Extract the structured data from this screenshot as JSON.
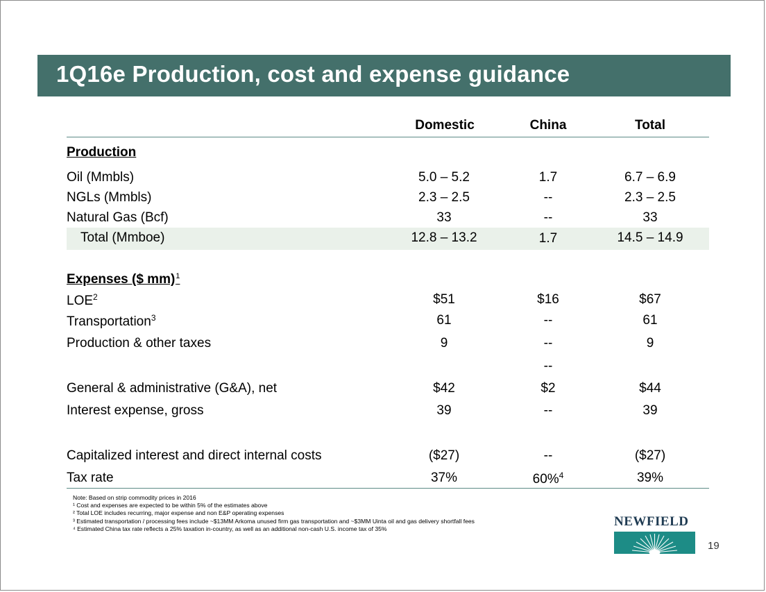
{
  "title": "1Q16e Production, cost and expense guidance",
  "columns": [
    "Domestic",
    "China",
    "Total"
  ],
  "production": {
    "heading": "Production",
    "rows": [
      {
        "label": "Oil (Mmbls)",
        "domestic": "5.0 – 5.2",
        "china": "1.7",
        "total": "6.7 – 6.9"
      },
      {
        "label": "NGLs (Mmbls)",
        "domestic": "2.3 – 2.5",
        "china": "--",
        "total": "2.3 – 2.5"
      },
      {
        "label": "Natural Gas (Bcf)",
        "domestic": "33",
        "china": "--",
        "total": "33"
      },
      {
        "label": "Total (Mmboe)",
        "domestic": "12.8 – 13.2",
        "china": "1.7",
        "total": "14.5 – 14.9"
      }
    ]
  },
  "expenses": {
    "heading": "Expenses ($ mm)",
    "heading_sup": "1",
    "rows": [
      {
        "label": "LOE",
        "sup": "2",
        "domestic": "$51",
        "china": "$16",
        "total": "$67"
      },
      {
        "label": "Transportation",
        "sup": "3",
        "domestic": "61",
        "china": "--",
        "total": "61"
      },
      {
        "label": "Production & other taxes",
        "domestic": "9",
        "china": "--",
        "total": "9"
      },
      {
        "label": "General & administrative (G&A), net",
        "domestic": "$42",
        "china": "$2",
        "total": "$44"
      },
      {
        "label": "Interest expense, gross",
        "domestic": "39",
        "china": "--",
        "total": "39"
      },
      {
        "label": "Capitalized interest and direct internal costs",
        "domestic": "($27)",
        "china": "--",
        "total": "($27)"
      },
      {
        "label": "Tax rate",
        "domestic": "37%",
        "china": "60%",
        "china_sup": "4",
        "total": "39%"
      }
    ],
    "stray_dash": "--"
  },
  "notes": [
    "Note: Based on strip commodity prices in 2016",
    "¹ Cost and expenses are expected to be within 5% of the estimates above",
    "² Total LOE includes recurring, major expense and non E&P operating expenses",
    "³ Estimated transportation / processing fees include ~$13MM Arkoma unused firm gas transportation and ~$3MM Uinta oil and gas delivery shortfall fees",
    "⁴ Estimated China tax rate reflects a 25% taxation in-country, as well as an additional non-cash U.S. income tax of 35%"
  ],
  "logo_text": "NEWFIELD",
  "page_number": "19",
  "colors": {
    "title_bar": "#44706b",
    "rule": "#5b8a85",
    "shaded_row": "#eaf1ea",
    "logo": "#1d8c86"
  }
}
